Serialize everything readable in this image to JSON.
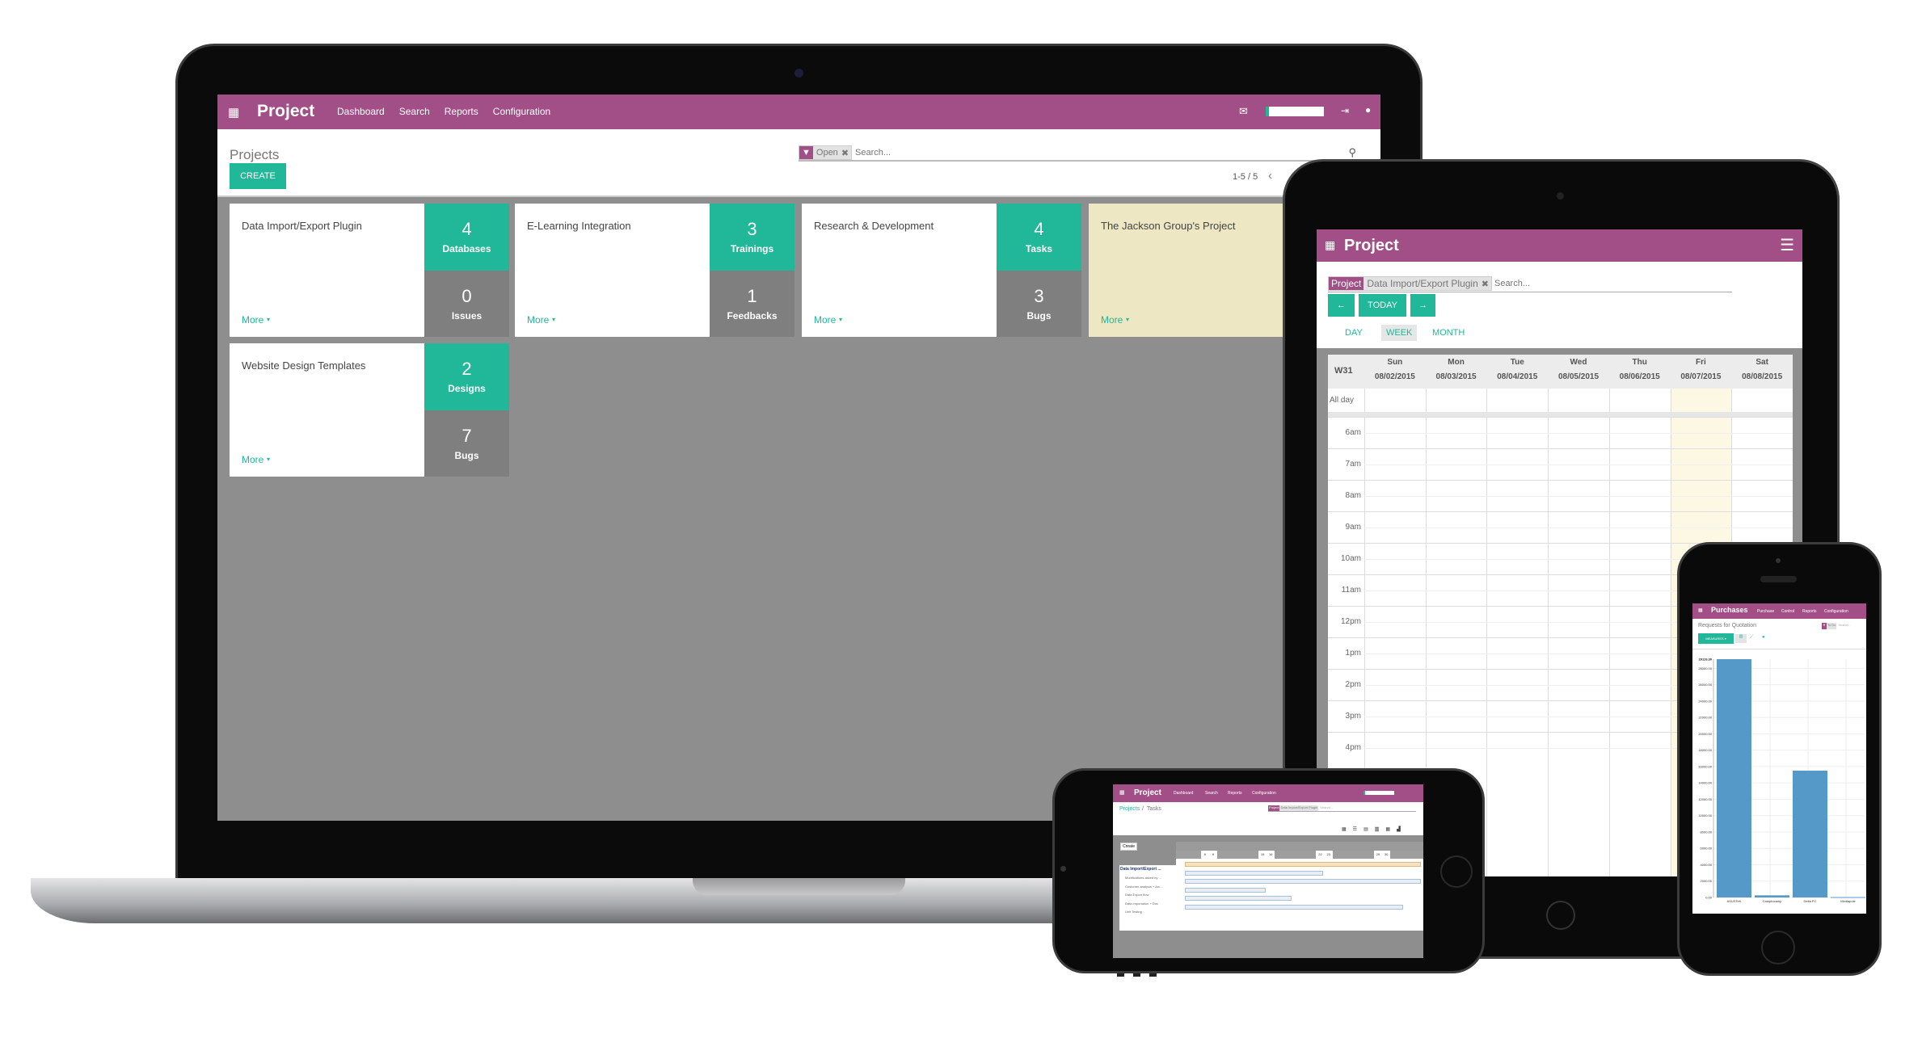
{
  "colors": {
    "brand": "#a24f87",
    "accent": "#21b799",
    "bar": "#5499c7",
    "today_column": "#fcf8e3"
  },
  "laptop": {
    "app_title": "Project",
    "apps_icon": "grid-icon",
    "menu": [
      "Dashboard",
      "Search",
      "Reports",
      "Configuration"
    ],
    "breadcrumb": "Projects",
    "filter_facet": "Open",
    "search_placeholder": "Search...",
    "create_label": "CREATE",
    "pager": "1-5 / 5",
    "cards": [
      {
        "name": "Data Import/Export Plugin",
        "more": "More",
        "stats": [
          {
            "value": "4",
            "label": "Databases"
          },
          {
            "value": "0",
            "label": "Issues"
          }
        ]
      },
      {
        "name": "E-Learning Integration",
        "more": "More",
        "stats": [
          {
            "value": "3",
            "label": "Trainings"
          },
          {
            "value": "1",
            "label": "Feedbacks"
          }
        ]
      },
      {
        "name": "Research & Development",
        "more": "More",
        "stats": [
          {
            "value": "4",
            "label": "Tasks"
          },
          {
            "value": "3",
            "label": "Bugs"
          }
        ]
      },
      {
        "name": "The Jackson Group's Project",
        "more": "More",
        "stats": []
      },
      {
        "name": "Website Design Templates",
        "more": "More",
        "stats": [
          {
            "value": "2",
            "label": "Designs"
          },
          {
            "value": "7",
            "label": "Bugs"
          }
        ]
      }
    ]
  },
  "tablet": {
    "app_title": "Project",
    "facet_label": "Project",
    "facet_value": "Data Import/Export Plugin",
    "search_placeholder": "Search...",
    "prev": "←",
    "today": "TODAY",
    "next": "→",
    "scales": [
      "DAY",
      "WEEK",
      "MONTH"
    ],
    "active_scale": "WEEK",
    "week": "W31",
    "allday": "All day",
    "days": [
      {
        "name": "Sun",
        "date": "08/02/2015"
      },
      {
        "name": "Mon",
        "date": "08/03/2015"
      },
      {
        "name": "Tue",
        "date": "08/04/2015"
      },
      {
        "name": "Wed",
        "date": "08/05/2015"
      },
      {
        "name": "Thu",
        "date": "08/06/2015"
      },
      {
        "name": "Fri",
        "date": "08/07/2015"
      },
      {
        "name": "Sat",
        "date": "08/08/2015"
      }
    ],
    "highlight_day": "Fri",
    "hours": [
      "6am",
      "7am",
      "8am",
      "9am",
      "10am",
      "11am",
      "12pm",
      "1pm",
      "2pm",
      "3pm",
      "4pm"
    ]
  },
  "phone_landscape": {
    "app_title": "Project",
    "menu": [
      "Dashboard",
      "Search",
      "Reports",
      "Configuration"
    ],
    "breadcrumb": {
      "parent": "Projects",
      "sep": "/",
      "current": "Tasks"
    },
    "facet_label": "Project",
    "facet_value": "Data Import/Export Plugin",
    "search_placeholder": "Search...",
    "create_label": "Create",
    "gantt_days": [
      "8",
      "9",
      "15",
      "16",
      "22",
      "23",
      "29",
      "30"
    ],
    "group": "Data Import/Export ...",
    "tasks": [
      "Modifications asked by ...",
      "Customer analysis + Arc...",
      "Data Export flow",
      "Data importation + Doc",
      "Unit Testing"
    ]
  },
  "phone_portrait": {
    "app_title": "Purchases",
    "menu": [
      "Purchase",
      "Control",
      "Reports",
      "Configuration"
    ],
    "subtitle": "Requests for Quotation",
    "facet": "To Do",
    "search_placeholder": "Search...",
    "measures_label": "MEASURES ▾"
  },
  "chart_data": {
    "type": "bar",
    "categories": [
      "ASUSTeK",
      "Camptocamp",
      "Delta PC",
      "Mediapole"
    ],
    "values": [
      29119.3,
      260,
      15500,
      50
    ],
    "ylim": [
      0,
      29119.3
    ],
    "yticks": [
      "0.00",
      "2000.00",
      "4000.00",
      "6000.00",
      "8000.00",
      "10000.00",
      "12000.00",
      "14000.00",
      "16000.00",
      "18000.00",
      "20000.00",
      "22000.00",
      "24000.00",
      "26000.00",
      "28000.00"
    ],
    "ymax_label": "29119.30",
    "grid": true
  }
}
